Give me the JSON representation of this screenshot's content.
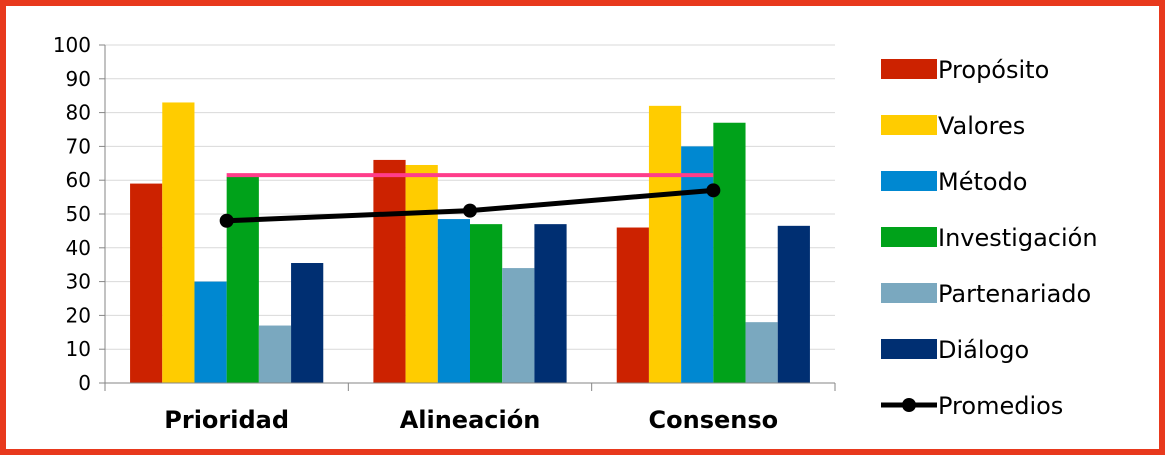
{
  "chart_data": {
    "type": "bar",
    "categories": [
      "Prioridad",
      "Alineación",
      "Consenso"
    ],
    "ylim": [
      0,
      100
    ],
    "yticks": [
      0,
      10,
      20,
      30,
      40,
      50,
      60,
      70,
      80,
      90,
      100
    ],
    "grid": true,
    "legend_position": "right",
    "series": [
      {
        "name": "Propósito",
        "color": "#cc2200",
        "values": [
          59,
          66,
          46
        ]
      },
      {
        "name": "Valores",
        "color": "#ffcc00",
        "values": [
          83,
          64.5,
          82
        ]
      },
      {
        "name": "Método",
        "color": "#0088d1",
        "values": [
          30,
          48.5,
          70
        ]
      },
      {
        "name": "Investigación",
        "color": "#00a21a",
        "values": [
          61,
          47,
          77
        ]
      },
      {
        "name": "Partenariado",
        "color": "#7aa8bf",
        "values": [
          17,
          34,
          18
        ]
      },
      {
        "name": "Diálogo",
        "color": "#002f72",
        "values": [
          35.5,
          47,
          46.5
        ]
      }
    ],
    "line_series": {
      "name": "Promedios",
      "color": "#000000",
      "values": [
        48,
        51,
        57
      ]
    },
    "reference_line": {
      "value": 61.5,
      "color": "#ff3d8a"
    }
  }
}
